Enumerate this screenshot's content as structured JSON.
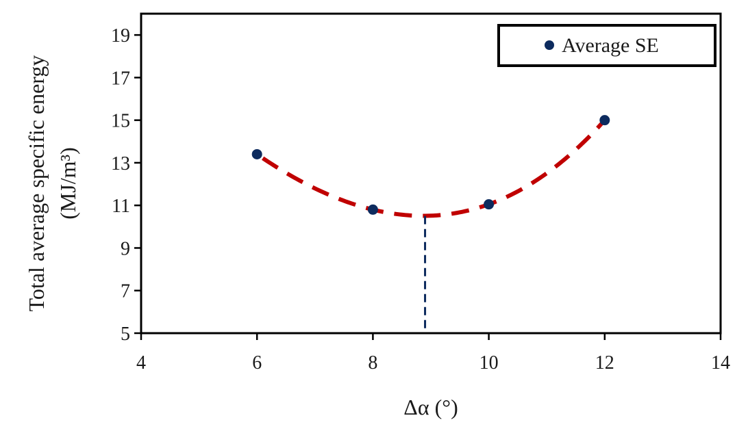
{
  "chart_data": {
    "type": "scatter",
    "xlabel": "Δα (°)",
    "ylabel_line1": "Total average specific energy",
    "ylabel_line2": "(MJ/m³)",
    "xlim": [
      4,
      14
    ],
    "ylim": [
      5,
      20
    ],
    "xticks": [
      4,
      6,
      8,
      10,
      12,
      14
    ],
    "yticks": [
      5,
      7,
      9,
      11,
      13,
      15,
      17,
      19
    ],
    "grid": false,
    "legend_position": "top-right",
    "series": [
      {
        "name": "Average SE",
        "marker": "circle",
        "color": "#0d2b5e",
        "points": [
          {
            "x": 6,
            "y": 13.4
          },
          {
            "x": 8,
            "y": 10.8
          },
          {
            "x": 10,
            "y": 11.05
          },
          {
            "x": 12,
            "y": 15.0
          }
        ]
      }
    ],
    "trendline": {
      "style": "dashed",
      "color": "#c00000",
      "x_range": [
        6.1,
        12
      ]
    },
    "minimum_marker": {
      "style": "dashed",
      "color": "#0d2b5e",
      "x": 8.9,
      "y": 10.5
    }
  }
}
